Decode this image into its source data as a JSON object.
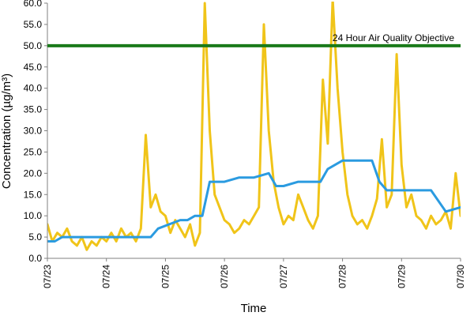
{
  "chart_data": {
    "type": "line",
    "xlabel": "Time",
    "ylabel": "Concentration (µg/m³)",
    "xlim": [
      "07/23 00:00",
      "07/30 00:00"
    ],
    "ylim": [
      0,
      60
    ],
    "y_ticks": [
      "0.0",
      "5.0",
      "10.0",
      "15.0",
      "20.0",
      "25.0",
      "30.0",
      "35.0",
      "40.0",
      "45.0",
      "50.0",
      "55.0",
      "60.0"
    ],
    "x_ticks": [
      "07/23",
      "07/24",
      "07/25",
      "07/26",
      "07/27",
      "07/28",
      "07/29",
      "07/30"
    ],
    "grid": false,
    "reference_line": {
      "label": "24 Hour Air Quality Objective",
      "value": 50,
      "color": "#1a7a1a"
    },
    "series": [
      {
        "color": "#f0c419",
        "x": [
          "07/23 00:00",
          "07/23 02:00",
          "07/23 04:00",
          "07/23 06:00",
          "07/23 08:00",
          "07/23 10:00",
          "07/23 12:00",
          "07/23 14:00",
          "07/23 16:00",
          "07/23 18:00",
          "07/23 20:00",
          "07/23 22:00",
          "07/24 00:00",
          "07/24 02:00",
          "07/24 04:00",
          "07/24 06:00",
          "07/24 08:00",
          "07/24 10:00",
          "07/24 12:00",
          "07/24 14:00",
          "07/24 16:00",
          "07/24 18:00",
          "07/24 20:00",
          "07/24 22:00",
          "07/25 00:00",
          "07/25 02:00",
          "07/25 04:00",
          "07/25 06:00",
          "07/25 08:00",
          "07/25 10:00",
          "07/25 12:00",
          "07/25 14:00",
          "07/25 16:00",
          "07/25 18:00",
          "07/25 20:00",
          "07/25 22:00",
          "07/26 00:00",
          "07/26 02:00",
          "07/26 04:00",
          "07/26 06:00",
          "07/26 08:00",
          "07/26 10:00",
          "07/26 12:00",
          "07/26 14:00",
          "07/26 16:00",
          "07/26 18:00",
          "07/26 20:00",
          "07/26 22:00",
          "07/27 00:00",
          "07/27 02:00",
          "07/27 04:00",
          "07/27 06:00",
          "07/27 08:00",
          "07/27 10:00",
          "07/27 12:00",
          "07/27 14:00",
          "07/27 16:00",
          "07/27 18:00",
          "07/27 20:00",
          "07/27 22:00",
          "07/28 00:00",
          "07/28 02:00",
          "07/28 04:00",
          "07/28 06:00",
          "07/28 08:00",
          "07/28 10:00",
          "07/28 12:00",
          "07/28 14:00",
          "07/28 16:00",
          "07/28 18:00",
          "07/28 20:00",
          "07/28 22:00",
          "07/29 00:00",
          "07/29 02:00",
          "07/29 04:00",
          "07/29 06:00",
          "07/29 08:00",
          "07/29 10:00",
          "07/29 12:00",
          "07/29 14:00",
          "07/29 16:00",
          "07/29 18:00",
          "07/29 20:00",
          "07/29 22:00",
          "07/30 00:00"
        ],
        "values": [
          8,
          4,
          6,
          5,
          7,
          4,
          3,
          5,
          2,
          4,
          3,
          5,
          4,
          6,
          4,
          7,
          5,
          6,
          4,
          7,
          29,
          12,
          15,
          11,
          10,
          6,
          9,
          7,
          5,
          8,
          3,
          6,
          60,
          30,
          15,
          12,
          9,
          8,
          6,
          7,
          9,
          8,
          10,
          12,
          55,
          30,
          18,
          12,
          8,
          10,
          9,
          15,
          12,
          9,
          7,
          10,
          42,
          27,
          61,
          40,
          25,
          15,
          10,
          8,
          9,
          7,
          10,
          14,
          28,
          12,
          15,
          48,
          22,
          12,
          15,
          10,
          9,
          7,
          10,
          8,
          9,
          11,
          7,
          20,
          10
        ]
      },
      {
        "color": "#2b9be0",
        "x": [
          "07/23 00:00",
          "07/23 03:00",
          "07/23 06:00",
          "07/24 00:00",
          "07/24 12:00",
          "07/24 18:00",
          "07/24 21:00",
          "07/25 06:00",
          "07/25 09:00",
          "07/25 12:00",
          "07/25 15:00",
          "07/25 18:00",
          "07/26 00:00",
          "07/26 06:00",
          "07/26 12:00",
          "07/26 18:00",
          "07/26 21:00",
          "07/27 00:00",
          "07/27 06:00",
          "07/27 12:00",
          "07/27 15:00",
          "07/27 18:00",
          "07/28 00:00",
          "07/28 06:00",
          "07/28 12:00",
          "07/28 15:00",
          "07/28 18:00",
          "07/29 00:00",
          "07/29 06:00",
          "07/29 12:00",
          "07/29 18:00",
          "07/30 00:00"
        ],
        "values": [
          4,
          4,
          5,
          5,
          5,
          5,
          7,
          9,
          9,
          10,
          10,
          18,
          18,
          19,
          19,
          20,
          17,
          17,
          18,
          18,
          18,
          21,
          23,
          23,
          23,
          18,
          16,
          16,
          16,
          16,
          11,
          12
        ]
      }
    ]
  }
}
